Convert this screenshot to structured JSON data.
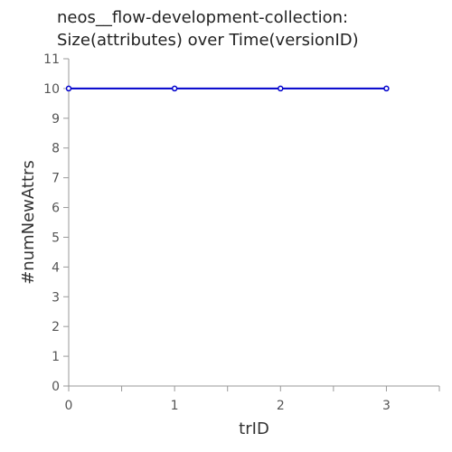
{
  "colors": {
    "series": "#0000cc",
    "axis": "#999999",
    "text": "#333333"
  },
  "chart_data": {
    "type": "line",
    "title_lines": [
      "neos__flow-development-collection:",
      "Size(attributes) over Time(versionID)"
    ],
    "xlabel": "trID",
    "ylabel": "#numNewAttrs",
    "x": [
      0,
      1,
      2,
      3
    ],
    "series": [
      {
        "values": [
          10,
          10,
          10,
          10
        ]
      }
    ],
    "xlim": [
      0,
      3.5
    ],
    "ylim": [
      0,
      11
    ],
    "x_ticks": [
      0,
      1,
      2,
      3
    ],
    "y_ticks": [
      0,
      1,
      2,
      3,
      4,
      5,
      6,
      7,
      8,
      9,
      10,
      11
    ],
    "grid": false,
    "legend": "none"
  }
}
